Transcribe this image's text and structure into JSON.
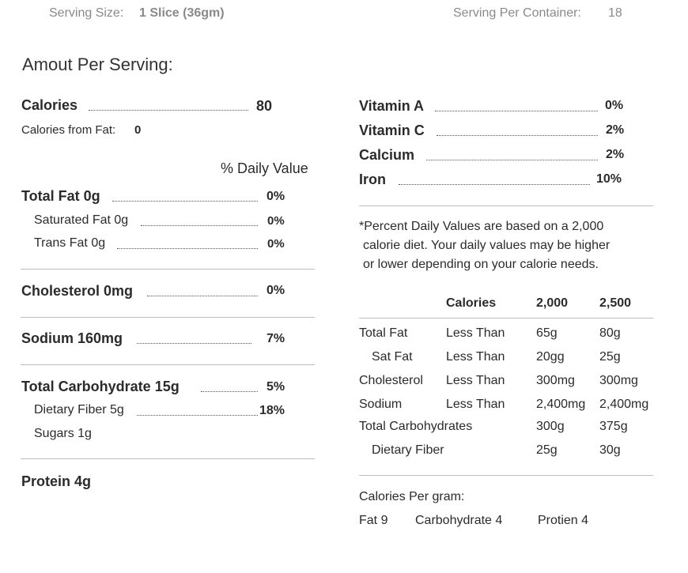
{
  "header": {
    "serving_size_label": "Serving Size:",
    "serving_size_value": "1 Slice (36gm)",
    "servings_label": "Serving Per Container:",
    "servings_value": "18"
  },
  "title": "Amout Per Serving:",
  "left": {
    "calories_label": "Calories",
    "calories_value": "80",
    "calories_fat_label": "Calories from Fat:",
    "calories_fat_value": "0",
    "daily_value_header": "% Daily Value",
    "total_fat_label": "Total Fat 0g",
    "total_fat_pct": "0%",
    "sat_fat_label": "Saturated Fat 0g",
    "sat_fat_pct": "0%",
    "trans_fat_label": "Trans Fat 0g",
    "trans_fat_pct": "0%",
    "cholesterol_label": "Cholesterol 0mg",
    "cholesterol_pct": "0%",
    "sodium_label": "Sodium 160mg",
    "sodium_pct": "7%",
    "carb_label": "Total Carbohydrate  15g",
    "carb_pct": "5%",
    "fiber_label": "Dietary Fiber 5g",
    "fiber_pct": "18%",
    "sugars_label": "Sugars 1g",
    "protein_label": "Protein 4g"
  },
  "vitamins": {
    "vit_a_label": "Vitamin A",
    "vit_a_pct": "0%",
    "vit_c_label": "Vitamin C",
    "vit_c_pct": "2%",
    "calcium_label": "Calcium",
    "calcium_pct": "2%",
    "iron_label": "Iron",
    "iron_pct": "10%"
  },
  "footnote": {
    "line1": "*Percent Daily Values are based on a 2,000",
    "line2": "calorie diet. Your daily values may be higher",
    "line3": "or lower depending on your calorie needs."
  },
  "table": {
    "headers": [
      "Calories",
      "2,000",
      "2,500"
    ],
    "rows": [
      [
        "Total Fat",
        "Less Than",
        "65g",
        "80g"
      ],
      [
        "Sat Fat",
        "Less Than",
        "20gg",
        "25g"
      ],
      [
        "Cholesterol",
        "Less Than",
        "300mg",
        "300mg"
      ],
      [
        "Sodium",
        "Less Than",
        "2,400mg",
        "2,400mg"
      ],
      [
        "Total Carbohydrates",
        "",
        "300g",
        "375g"
      ],
      [
        "Dietary Fiber",
        "",
        "25g",
        "30g"
      ]
    ]
  },
  "per_gram": {
    "title": "Calories Per gram:",
    "fat": "Fat 9",
    "carb": "Carbohydrate 4",
    "protein": "Protien 4"
  }
}
